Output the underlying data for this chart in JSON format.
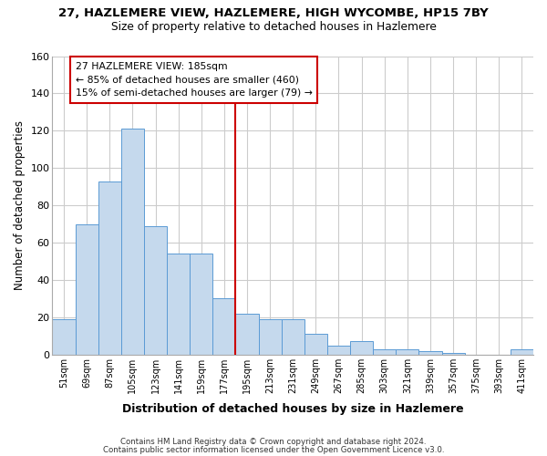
{
  "title_line1": "27, HAZLEMERE VIEW, HAZLEMERE, HIGH WYCOMBE, HP15 7BY",
  "title_line2": "Size of property relative to detached houses in Hazlemere",
  "xlabel": "Distribution of detached houses by size in Hazlemere",
  "ylabel": "Number of detached properties",
  "categories": [
    "51sqm",
    "69sqm",
    "87sqm",
    "105sqm",
    "123sqm",
    "141sqm",
    "159sqm",
    "177sqm",
    "195sqm",
    "213sqm",
    "231sqm",
    "249sqm",
    "267sqm",
    "285sqm",
    "303sqm",
    "321sqm",
    "339sqm",
    "357sqm",
    "375sqm",
    "393sqm",
    "411sqm"
  ],
  "values": [
    19,
    70,
    93,
    121,
    69,
    54,
    54,
    30,
    22,
    19,
    19,
    11,
    5,
    7,
    3,
    3,
    2,
    1,
    0,
    0,
    3
  ],
  "bar_color": "#c5d9ed",
  "bar_edge_color": "#5b9bd5",
  "vline_x": 8.0,
  "vline_color": "#cc0000",
  "annotation_title": "27 HAZLEMERE VIEW: 185sqm",
  "annotation_line1": "← 85% of detached houses are smaller (460)",
  "annotation_line2": "15% of semi-detached houses are larger (79) →",
  "annotation_box_color": "#cc0000",
  "ylim": [
    0,
    160
  ],
  "yticks": [
    0,
    20,
    40,
    60,
    80,
    100,
    120,
    140,
    160
  ],
  "footer_line1": "Contains HM Land Registry data © Crown copyright and database right 2024.",
  "footer_line2": "Contains public sector information licensed under the Open Government Licence v3.0.",
  "bg_color": "#ffffff",
  "grid_color": "#cccccc"
}
